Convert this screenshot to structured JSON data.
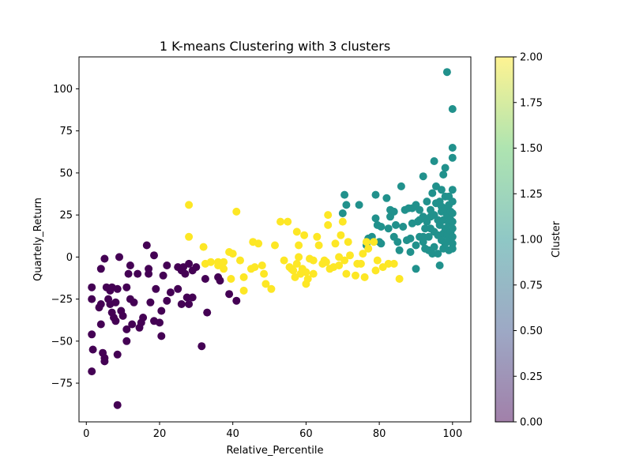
{
  "chart_data": {
    "type": "scatter",
    "title": "1 K-means Clustering with 3 clusters",
    "xlabel": "Relative_Percentile",
    "ylabel": "Quartely_Return",
    "xlim": [
      -2,
      105
    ],
    "ylim": [
      -98,
      119
    ],
    "x_ticks": [
      0,
      20,
      40,
      60,
      80,
      100
    ],
    "y_ticks": [
      -75,
      -50,
      -25,
      0,
      25,
      50,
      75,
      100
    ],
    "grid": false,
    "marker_alpha": 1.0,
    "colorbar": {
      "label": "Cluster",
      "range": [
        0,
        2
      ],
      "ticks": [
        "0.00",
        "0.25",
        "0.50",
        "0.75",
        "1.00",
        "1.25",
        "1.50",
        "1.75",
        "2.00"
      ],
      "alpha": 0.5,
      "colormap_stops": [
        "#440154",
        "#3b528b",
        "#21918c",
        "#5ec962",
        "#fde725"
      ]
    },
    "cluster_colors": [
      "#440154",
      "#21918c",
      "#fde725"
    ],
    "series": [
      {
        "cluster": 0,
        "points": [
          [
            1.5,
            -18
          ],
          [
            1.5,
            -25
          ],
          [
            1.5,
            -46
          ],
          [
            1.8,
            -55
          ],
          [
            1.5,
            -68
          ],
          [
            3.5,
            -30
          ],
          [
            4,
            -28
          ],
          [
            4,
            -40
          ],
          [
            4,
            -7
          ],
          [
            4.5,
            -57
          ],
          [
            5,
            -60
          ],
          [
            5,
            -62
          ],
          [
            5,
            -1
          ],
          [
            5.5,
            -18
          ],
          [
            6,
            -25
          ],
          [
            6.5,
            -20
          ],
          [
            6.5,
            -28
          ],
          [
            7,
            -18
          ],
          [
            7,
            -33
          ],
          [
            7.5,
            -36
          ],
          [
            8,
            -27
          ],
          [
            8,
            -38
          ],
          [
            8.5,
            -19
          ],
          [
            9,
            0
          ],
          [
            8.5,
            -58
          ],
          [
            8.5,
            -88
          ],
          [
            9.5,
            -32
          ],
          [
            10,
            -35
          ],
          [
            11,
            -43
          ],
          [
            11,
            -50
          ],
          [
            11,
            -18
          ],
          [
            11.5,
            -10
          ],
          [
            12,
            -25
          ],
          [
            12,
            -5
          ],
          [
            12.5,
            -40
          ],
          [
            13,
            -27
          ],
          [
            14,
            -10
          ],
          [
            14.5,
            -42
          ],
          [
            15,
            -39
          ],
          [
            15.5,
            -36
          ],
          [
            16.5,
            7
          ],
          [
            17,
            -7
          ],
          [
            17,
            -10
          ],
          [
            17.5,
            -27
          ],
          [
            18.5,
            -38
          ],
          [
            18.5,
            1
          ],
          [
            19,
            -19
          ],
          [
            20,
            -39
          ],
          [
            20.5,
            -32
          ],
          [
            20.5,
            -47
          ],
          [
            21,
            -11
          ],
          [
            22,
            -26
          ],
          [
            22,
            -5
          ],
          [
            23,
            -21
          ],
          [
            25,
            -6
          ],
          [
            25,
            -19
          ],
          [
            26,
            -8
          ],
          [
            26,
            -28
          ],
          [
            26.5,
            -6
          ],
          [
            27,
            -10
          ],
          [
            27.5,
            -24
          ],
          [
            28,
            -28
          ],
          [
            28,
            -4
          ],
          [
            29,
            -24
          ],
          [
            29,
            -8
          ],
          [
            30,
            -6
          ],
          [
            31.5,
            -53
          ],
          [
            32.5,
            -13
          ],
          [
            33,
            -33
          ],
          [
            36,
            -12
          ],
          [
            36.5,
            -14
          ],
          [
            39,
            -22
          ],
          [
            41,
            -26
          ]
        ]
      },
      {
        "cluster": 1,
        "points": [
          [
            70,
            26
          ],
          [
            70.5,
            37
          ],
          [
            71,
            31
          ],
          [
            74.5,
            31
          ],
          [
            76.5,
            7
          ],
          [
            77,
            11
          ],
          [
            78,
            12
          ],
          [
            79,
            23
          ],
          [
            79,
            37
          ],
          [
            79.5,
            19
          ],
          [
            80,
            9
          ],
          [
            80.5,
            18
          ],
          [
            80.5,
            8
          ],
          [
            82,
            35
          ],
          [
            82.5,
            17
          ],
          [
            83,
            24
          ],
          [
            83,
            28
          ],
          [
            84,
            12
          ],
          [
            84,
            27
          ],
          [
            84.5,
            19
          ],
          [
            85,
            9
          ],
          [
            85.5,
            4
          ],
          [
            86,
            42
          ],
          [
            86.5,
            18
          ],
          [
            87,
            28
          ],
          [
            87.5,
            10
          ],
          [
            88,
            29
          ],
          [
            88.5,
            3
          ],
          [
            88.5,
            11
          ],
          [
            89,
            29
          ],
          [
            89,
            20
          ],
          [
            90,
            31
          ],
          [
            90,
            7
          ],
          [
            90,
            -7
          ],
          [
            90.5,
            21
          ],
          [
            91,
            12
          ],
          [
            91,
            22
          ],
          [
            91,
            28
          ],
          [
            92,
            48
          ],
          [
            92,
            24
          ],
          [
            92,
            12
          ],
          [
            92,
            9
          ],
          [
            92.5,
            17
          ],
          [
            92.5,
            5
          ],
          [
            93,
            21
          ],
          [
            93,
            33
          ],
          [
            93.5,
            4
          ],
          [
            93.5,
            12
          ],
          [
            94,
            24
          ],
          [
            94,
            28
          ],
          [
            94,
            17
          ],
          [
            94.5,
            2
          ],
          [
            94.5,
            38
          ],
          [
            95,
            57
          ],
          [
            95,
            15
          ],
          [
            95,
            6
          ],
          [
            95,
            25
          ],
          [
            95.5,
            42
          ],
          [
            95.5,
            32
          ],
          [
            96,
            13
          ],
          [
            96,
            22
          ],
          [
            96,
            2
          ],
          [
            96.5,
            33
          ],
          [
            96.5,
            -5
          ],
          [
            96.5,
            19
          ],
          [
            97,
            40
          ],
          [
            97,
            10
          ],
          [
            97,
            27
          ],
          [
            97,
            30
          ],
          [
            97.5,
            49
          ],
          [
            97.5,
            14
          ],
          [
            97.5,
            22
          ],
          [
            97.5,
            5
          ],
          [
            98,
            53
          ],
          [
            98,
            36
          ],
          [
            98,
            8
          ],
          [
            98,
            17
          ],
          [
            98,
            29
          ],
          [
            98.5,
            110
          ],
          [
            98.5,
            25
          ],
          [
            98.5,
            13
          ],
          [
            99,
            31
          ],
          [
            99,
            20
          ],
          [
            99,
            36
          ],
          [
            99,
            4
          ],
          [
            99,
            11
          ],
          [
            99.5,
            22
          ],
          [
            99.5,
            15
          ],
          [
            99.5,
            27
          ],
          [
            100,
            88
          ],
          [
            100,
            65
          ],
          [
            100,
            59
          ],
          [
            100,
            40
          ],
          [
            100,
            33
          ],
          [
            100,
            26
          ],
          [
            100,
            21
          ],
          [
            100,
            17
          ],
          [
            100,
            12
          ],
          [
            100,
            8
          ],
          [
            100,
            5
          ]
        ]
      },
      {
        "cluster": 2,
        "points": [
          [
            28,
            31
          ],
          [
            28,
            12
          ],
          [
            32,
            6
          ],
          [
            32.5,
            -4
          ],
          [
            34,
            -3
          ],
          [
            36,
            -3
          ],
          [
            36,
            -5
          ],
          [
            37.5,
            -7
          ],
          [
            37.5,
            -3
          ],
          [
            39,
            3
          ],
          [
            39.5,
            -13
          ],
          [
            40,
            2
          ],
          [
            41,
            27
          ],
          [
            42,
            -2
          ],
          [
            43,
            -12
          ],
          [
            43,
            -20
          ],
          [
            45,
            -7
          ],
          [
            45.5,
            9
          ],
          [
            46,
            -6
          ],
          [
            47,
            8
          ],
          [
            48,
            -5
          ],
          [
            48.5,
            -10
          ],
          [
            49,
            -16
          ],
          [
            50.5,
            -19
          ],
          [
            51.5,
            7
          ],
          [
            53,
            21
          ],
          [
            54,
            -2
          ],
          [
            55,
            21
          ],
          [
            55.5,
            -6
          ],
          [
            56,
            -7
          ],
          [
            56.5,
            -8
          ],
          [
            57,
            -12
          ],
          [
            57.5,
            -4
          ],
          [
            57.5,
            15
          ],
          [
            58,
            7
          ],
          [
            58,
            0
          ],
          [
            58.5,
            -10
          ],
          [
            59,
            -7
          ],
          [
            59.5,
            13
          ],
          [
            60,
            -16
          ],
          [
            60,
            -9
          ],
          [
            60.5,
            -13
          ],
          [
            61,
            -1
          ],
          [
            62,
            -2
          ],
          [
            62,
            -10
          ],
          [
            63,
            12
          ],
          [
            63.5,
            7
          ],
          [
            64.5,
            -4
          ],
          [
            65,
            -2
          ],
          [
            65.5,
            -3
          ],
          [
            66,
            19
          ],
          [
            66,
            25
          ],
          [
            66.5,
            -7
          ],
          [
            67.5,
            -6
          ],
          [
            68,
            8
          ],
          [
            69,
            -5
          ],
          [
            69,
            0
          ],
          [
            69.5,
            13
          ],
          [
            70,
            21
          ],
          [
            70.5,
            -2
          ],
          [
            71,
            -10
          ],
          [
            71.5,
            9
          ],
          [
            72,
            1
          ],
          [
            73.5,
            -11
          ],
          [
            74,
            -4
          ],
          [
            75,
            -4
          ],
          [
            75.5,
            2
          ],
          [
            76,
            -12
          ],
          [
            76.5,
            9
          ],
          [
            77,
            5
          ],
          [
            78.5,
            9
          ],
          [
            79,
            -8
          ],
          [
            79.5,
            -2
          ],
          [
            81,
            -6
          ],
          [
            82.5,
            -4
          ],
          [
            84,
            -4
          ],
          [
            85.5,
            -13
          ]
        ]
      }
    ]
  }
}
